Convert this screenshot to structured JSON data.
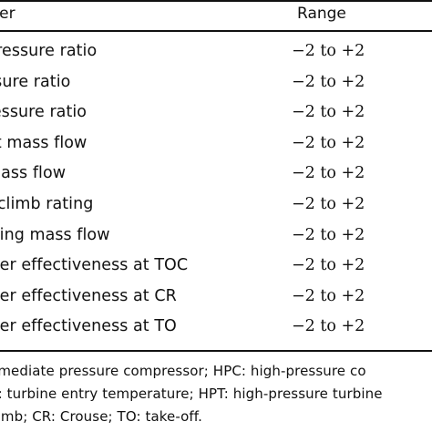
{
  "table": {
    "header": {
      "parameter": "eter",
      "range": "Range"
    },
    "rows": [
      {
        "parameter": "pressure ratio",
        "range": "−2 to +2"
      },
      {
        "parameter": "ssure ratio",
        "range": "−2 to +2"
      },
      {
        "parameter": "ressure ratio",
        "range": "−2 to +2"
      },
      {
        "parameter": "et mass flow",
        "range": "−2 to +2"
      },
      {
        "parameter": "mass flow",
        "range": "−2 to +2"
      },
      {
        "parameter": "r climb rating",
        "range": "−2 to +2"
      },
      {
        "parameter": "oling mass flow",
        "range": "−2 to +2"
      },
      {
        "parameter": "oler effectiveness at TOC",
        "range": "−2 to +2"
      },
      {
        "parameter": "oler effectiveness at CR",
        "range": "−2 to +2"
      },
      {
        "parameter": "oler effectiveness at TO",
        "range": "−2 to +2"
      }
    ]
  },
  "notes": [
    "ermediate pressure compressor; HPC: high-pressure co",
    "T: turbine entry temperature; HPT: high-pressure turbine",
    "climb; CR: Crouse; TO: take-off."
  ]
}
